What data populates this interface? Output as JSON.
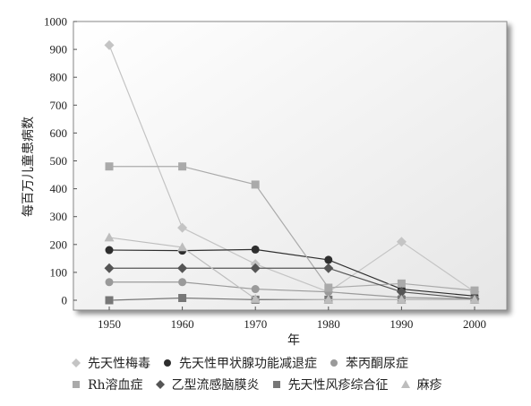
{
  "chart_data": {
    "type": "line",
    "x": [
      1950,
      1960,
      1970,
      1980,
      1990,
      2000
    ],
    "xlabel": "年",
    "ylabel": "每百万儿童患病数",
    "ylim": [
      0,
      1000
    ],
    "yticks": [
      0,
      100,
      200,
      300,
      400,
      500,
      600,
      700,
      800,
      900,
      1000
    ],
    "xticks": [
      1950,
      1960,
      1970,
      1980,
      1990,
      2000
    ],
    "grid": false,
    "legend_position": "bottom",
    "series": [
      {
        "name": "先天性梅毒",
        "marker": "diamond",
        "color": "#c4c4c4",
        "values": [
          915,
          260,
          130,
          30,
          210,
          30
        ]
      },
      {
        "name": "先天性甲状腺功能减退症",
        "marker": "circle",
        "color": "#2e2e2e",
        "values": [
          180,
          178,
          182,
          145,
          40,
          15
        ]
      },
      {
        "name": "苯丙酮尿症",
        "marker": "circle",
        "color": "#9a9a9a",
        "values": [
          65,
          65,
          40,
          30,
          10,
          5
        ]
      },
      {
        "name": "Rh溶血症",
        "marker": "square",
        "color": "#aaaaaa",
        "values": [
          480,
          480,
          415,
          45,
          60,
          35
        ]
      },
      {
        "name": "乙型流感脑膜炎",
        "marker": "diamond",
        "color": "#555555",
        "values": [
          115,
          115,
          115,
          115,
          30,
          5
        ]
      },
      {
        "name": "先天性风疹综合征",
        "marker": "square",
        "color": "#777777",
        "values": [
          0,
          8,
          2,
          2,
          2,
          2
        ]
      },
      {
        "name": "麻疹",
        "marker": "triangle",
        "color": "#bdbdbd",
        "values": [
          225,
          190,
          5,
          2,
          2,
          2
        ]
      }
    ]
  },
  "legend_rows": [
    [
      0,
      1,
      2
    ],
    [
      3,
      4,
      5,
      6
    ]
  ]
}
